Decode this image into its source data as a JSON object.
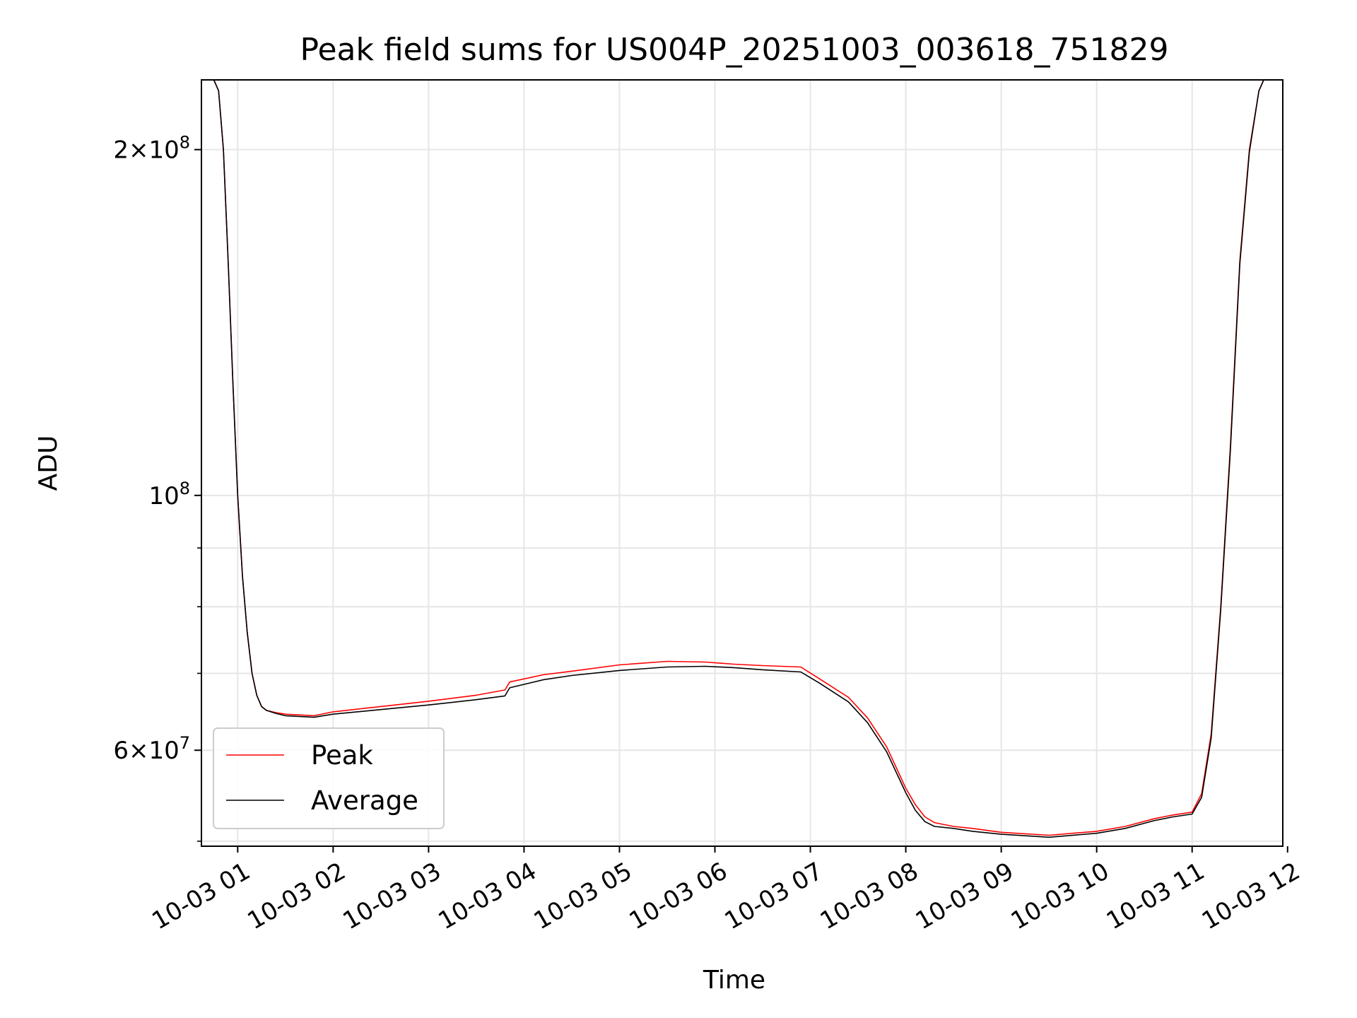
{
  "chart_data": {
    "type": "line",
    "title": "Peak field sums for US004P_20251003_003618_751829",
    "xlabel": "Time",
    "ylabel": "ADU",
    "y_scale": "log",
    "x_unit": "hours after 2025-10-03 00:00",
    "xlim": [
      0.62,
      11.95
    ],
    "ylim": [
      49500000,
      230000000
    ],
    "grid": true,
    "legend_position": "lower-left",
    "x_ticks": [
      1,
      2,
      3,
      4,
      5,
      6,
      7,
      8,
      9,
      10,
      11,
      12
    ],
    "x_tick_labels": [
      "10-03 01",
      "10-03 02",
      "10-03 03",
      "10-03 04",
      "10-03 05",
      "10-03 06",
      "10-03 07",
      "10-03 08",
      "10-03 09",
      "10-03 10",
      "10-03 11",
      "10-03 12"
    ],
    "y_major_ticks": [
      {
        "value": 60000000,
        "mant": "6",
        "exp": "7"
      },
      {
        "value": 100000000,
        "mant": "",
        "exp": "8"
      },
      {
        "value": 200000000,
        "mant": "2",
        "exp": "8"
      }
    ],
    "y_minor_ticks": [
      50000000,
      70000000,
      80000000,
      90000000
    ],
    "y_tick_times": "×",
    "y_tick_base": "10",
    "series": [
      {
        "name": "Peak",
        "color": "#ff0000",
        "x": [
          0.62,
          0.75,
          0.8,
          0.85,
          0.9,
          0.95,
          1.0,
          1.05,
          1.1,
          1.15,
          1.2,
          1.25,
          1.3,
          1.4,
          1.5,
          1.8,
          2.0,
          2.5,
          3.0,
          3.5,
          3.8,
          3.85,
          4.2,
          4.5,
          5.0,
          5.5,
          5.9,
          6.2,
          6.5,
          6.9,
          7.1,
          7.4,
          7.6,
          7.8,
          8.0,
          8.1,
          8.2,
          8.3,
          8.5,
          8.7,
          9.0,
          9.5,
          10.0,
          10.3,
          10.6,
          10.8,
          11.0,
          11.1,
          11.2,
          11.3,
          11.4,
          11.5,
          11.6,
          11.7,
          11.75,
          11.8,
          11.85,
          11.95
        ],
        "y": [
          230000000,
          230000000,
          225000000,
          200000000,
          160000000,
          125000000,
          100000000,
          85000000,
          76000000,
          70000000,
          67000000,
          65500000,
          65000000,
          64700000,
          64500000,
          64300000,
          64800000,
          65500000,
          66200000,
          67000000,
          67700000,
          68800000,
          69800000,
          70300000,
          71200000,
          71700000,
          71600000,
          71300000,
          71100000,
          70900000,
          69200000,
          66700000,
          64000000,
          60400000,
          55600000,
          53800000,
          52500000,
          51900000,
          51500000,
          51300000,
          50900000,
          50600000,
          51000000,
          51500000,
          52300000,
          52700000,
          53000000,
          55000000,
          62000000,
          80000000,
          110000000,
          160000000,
          200000000,
          225000000,
          230000000,
          230000000,
          230000000,
          230000000
        ]
      },
      {
        "name": "Average",
        "color": "#000000",
        "x": [
          0.62,
          0.75,
          0.8,
          0.85,
          0.9,
          0.95,
          1.0,
          1.05,
          1.1,
          1.15,
          1.2,
          1.25,
          1.3,
          1.4,
          1.5,
          1.8,
          2.0,
          2.5,
          3.0,
          3.5,
          3.8,
          3.85,
          4.2,
          4.5,
          5.0,
          5.5,
          5.9,
          6.2,
          6.5,
          6.9,
          7.1,
          7.4,
          7.6,
          7.8,
          8.0,
          8.1,
          8.2,
          8.3,
          8.5,
          8.7,
          9.0,
          9.5,
          10.0,
          10.3,
          10.6,
          10.8,
          11.0,
          11.1,
          11.2,
          11.3,
          11.4,
          11.5,
          11.6,
          11.7,
          11.75,
          11.8,
          11.85,
          11.95
        ],
        "y": [
          230000000,
          230000000,
          225000000,
          200000000,
          160000000,
          125000000,
          100000000,
          85000000,
          76000000,
          70000000,
          67000000,
          65500000,
          65000000,
          64600000,
          64300000,
          64100000,
          64500000,
          65100000,
          65700000,
          66400000,
          66900000,
          68000000,
          69100000,
          69700000,
          70400000,
          70900000,
          71000000,
          70800000,
          70500000,
          70200000,
          68600000,
          66100000,
          63400000,
          59800000,
          55100000,
          53200000,
          52000000,
          51500000,
          51300000,
          51000000,
          50700000,
          50400000,
          50800000,
          51300000,
          52100000,
          52500000,
          52800000,
          54600000,
          61500000,
          79500000,
          109000000,
          159000000,
          199000000,
          225000000,
          230000000,
          230000000,
          230000000,
          230000000
        ]
      }
    ]
  }
}
